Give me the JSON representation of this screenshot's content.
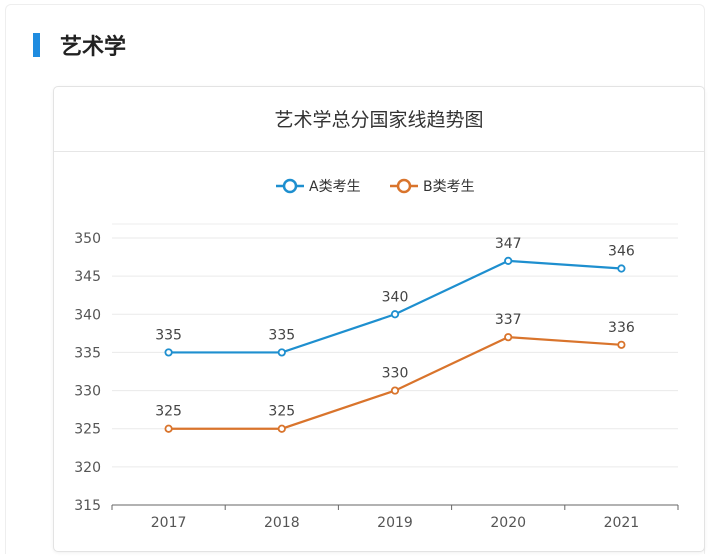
{
  "section": {
    "title": "艺术学",
    "accent": "#1f8ce0"
  },
  "chart_data": {
    "type": "line",
    "title": "艺术学总分国家线趋势图",
    "categories": [
      "2017",
      "2018",
      "2019",
      "2020",
      "2021"
    ],
    "series": [
      {
        "name": "A类考生",
        "values": [
          335,
          335,
          340,
          347,
          346
        ],
        "color": "#1e8fcf"
      },
      {
        "name": "B类考生",
        "values": [
          325,
          325,
          330,
          337,
          336
        ],
        "color": "#d9742c"
      }
    ],
    "ylim": [
      315,
      350
    ],
    "yticks": [
      315,
      320,
      325,
      330,
      335,
      340,
      345,
      350
    ],
    "grid": true,
    "legend": "top-center",
    "data_labels": true,
    "xlabel": "",
    "ylabel": ""
  }
}
